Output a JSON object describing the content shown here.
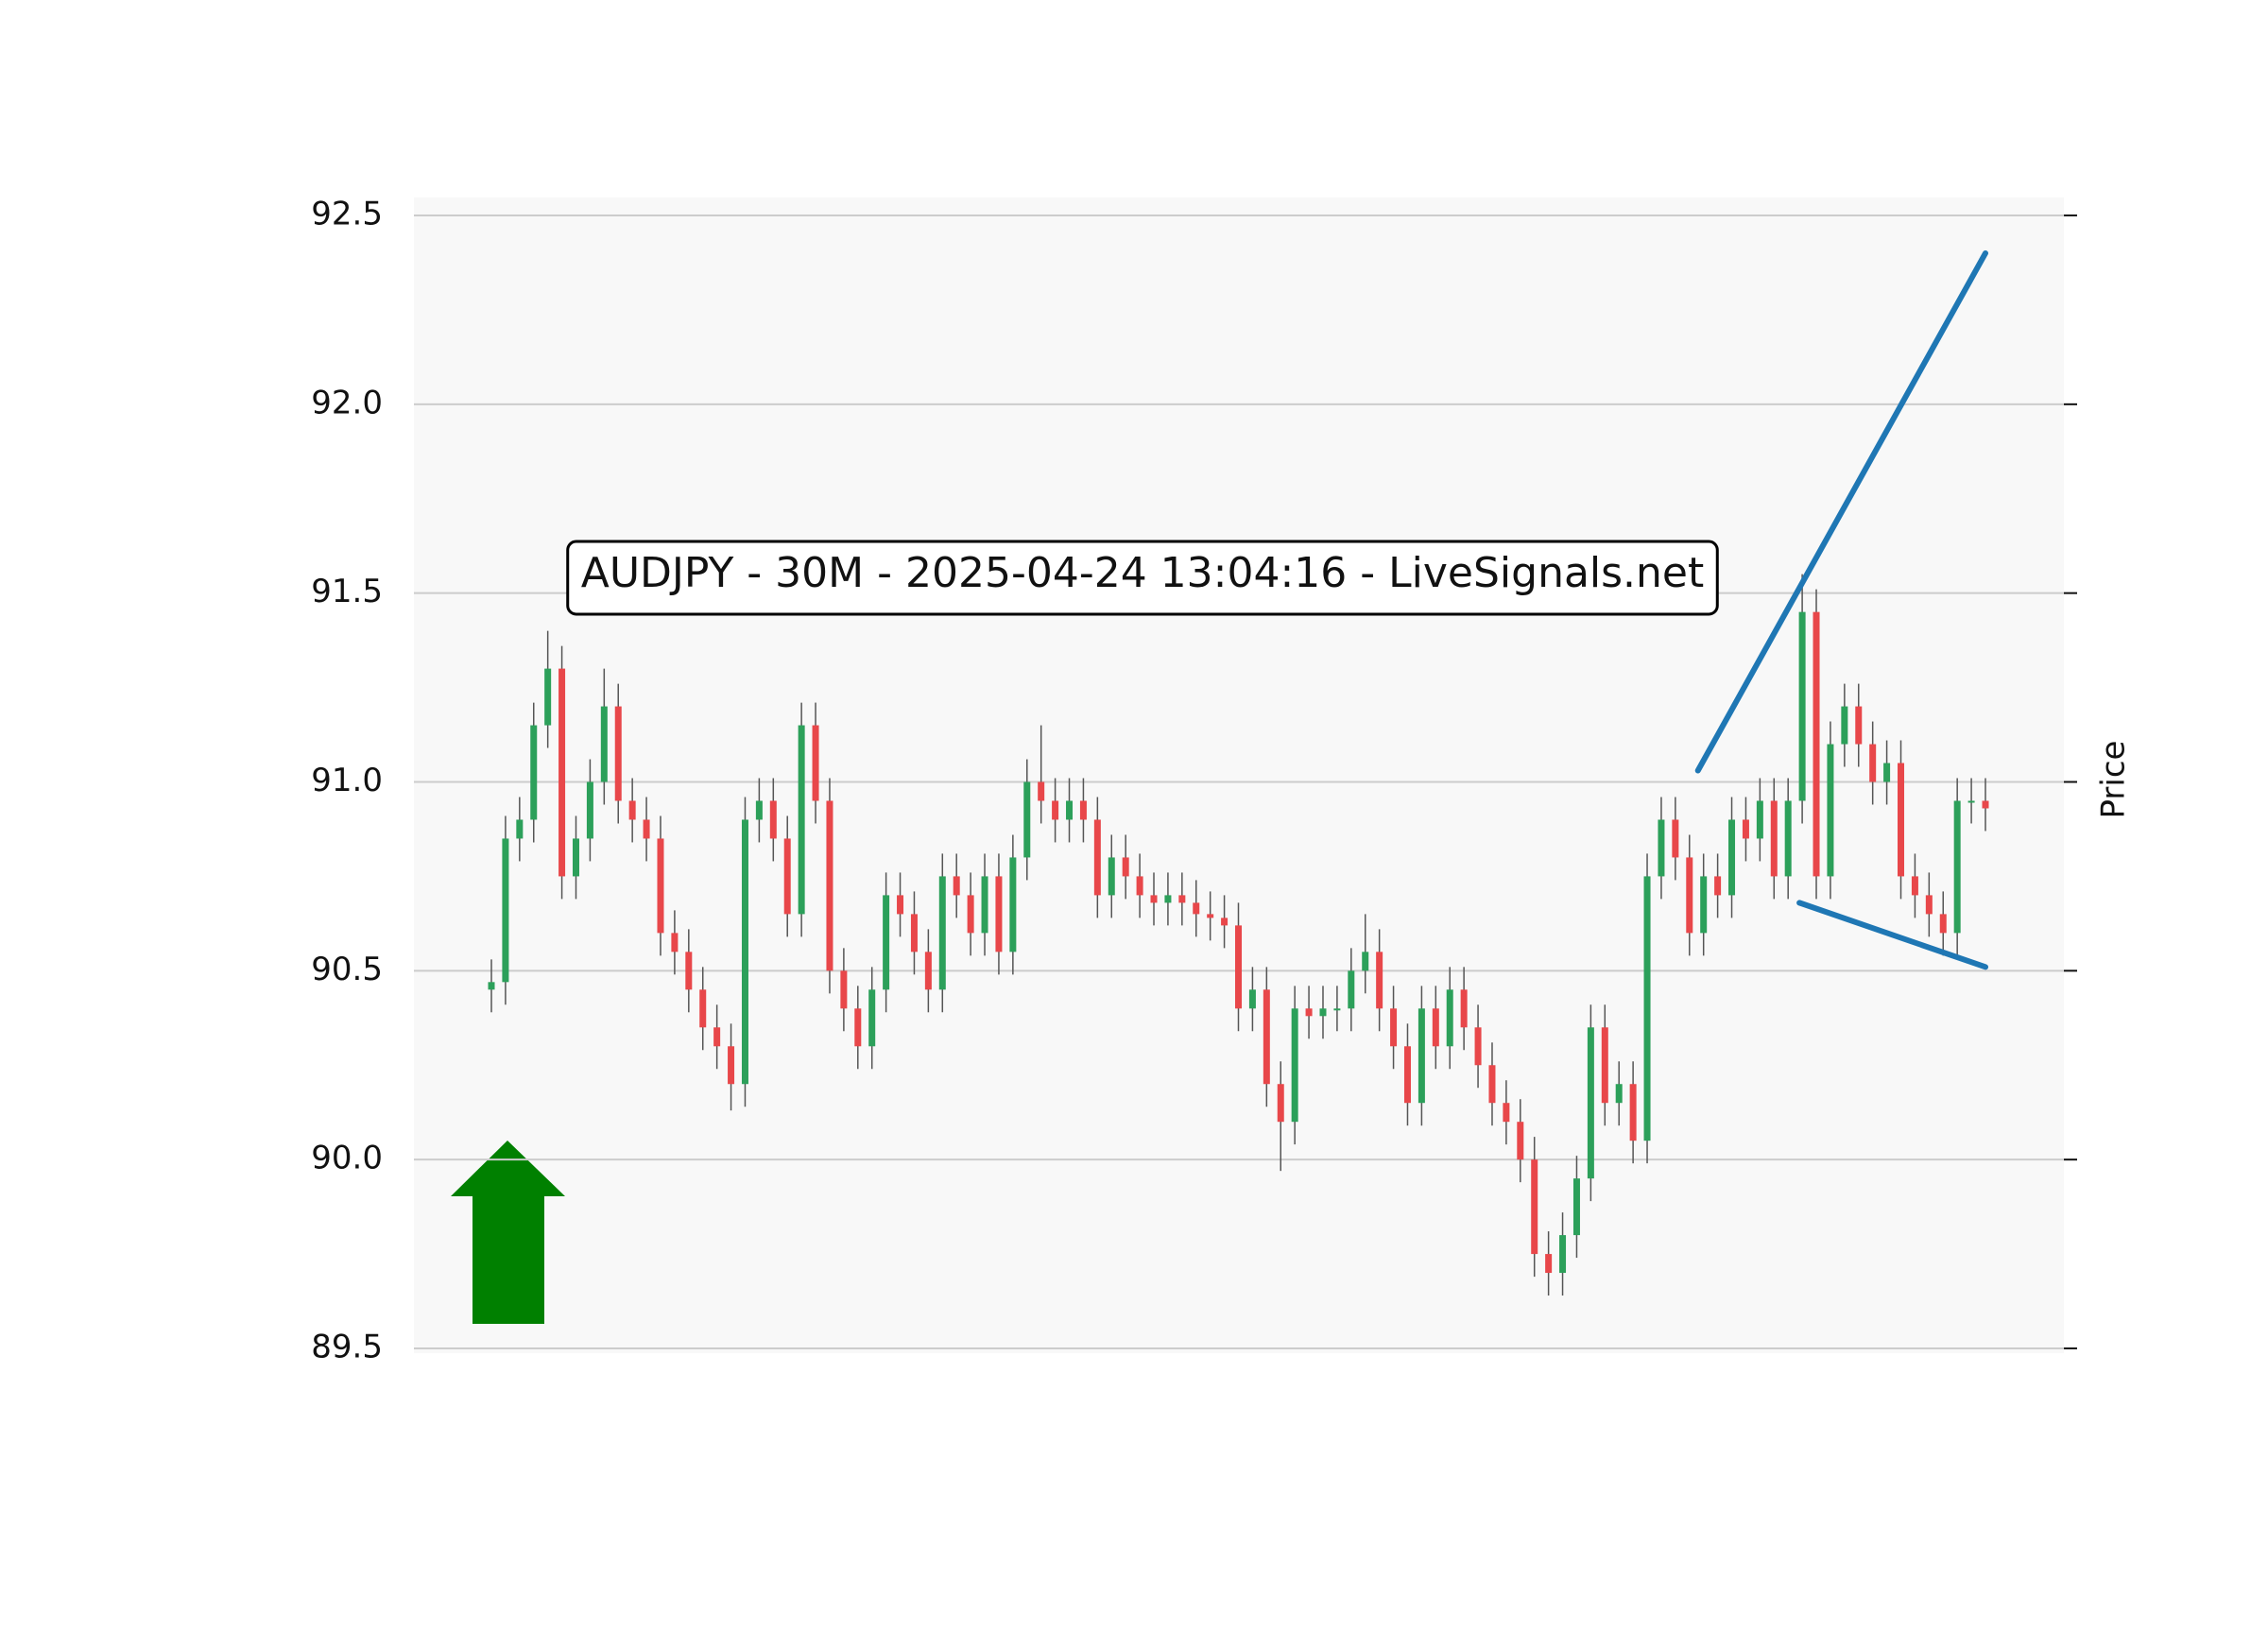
{
  "chart_data": {
    "type": "candlestick",
    "annotation": "AUDJPY - 30M - 2025-04-24 13:04:16 - LiveSignals.net",
    "ylabel": "Price",
    "ylim": [
      89.5,
      92.5
    ],
    "yticks": [
      {
        "value": 89.5,
        "label": "89.5"
      },
      {
        "value": 90,
        "label": "90.0"
      },
      90.5,
      {
        "value": 91,
        "label": "91.0"
      },
      91.5,
      {
        "value": 92,
        "label": "92.0"
      },
      92.5
    ],
    "grid": true,
    "up_color": "#2ca05a",
    "down_color": "#e8474a",
    "wick_color": "#555555",
    "open": [
      90.45,
      90.47,
      90.85,
      90.9,
      91.15,
      91.3,
      90.75,
      90.85,
      91.0,
      91.2,
      90.95,
      90.9,
      90.85,
      90.6,
      90.55,
      90.45,
      90.35,
      90.3,
      90.2,
      90.9,
      90.95,
      90.85,
      90.65,
      91.15,
      90.95,
      90.5,
      90.4,
      90.3,
      90.45,
      90.7,
      90.65,
      90.55,
      90.45,
      90.75,
      90.7,
      90.6,
      90.75,
      90.55,
      90.8,
      91.0,
      90.95,
      90.9,
      90.95,
      90.9,
      90.7,
      90.8,
      90.75,
      90.7,
      90.68,
      90.7,
      90.68,
      90.65,
      90.64,
      90.62,
      90.4,
      90.45,
      90.2,
      90.1,
      90.4,
      90.38,
      90.4,
      90.4,
      90.5,
      90.55,
      90.4,
      90.3,
      90.15,
      90.4,
      90.3,
      90.45,
      90.35,
      90.25,
      90.15,
      90.1,
      90.0,
      89.75,
      89.7,
      89.8,
      89.95,
      90.35,
      90.15,
      90.2,
      90.05,
      90.75,
      90.9,
      90.8,
      90.6,
      90.75,
      90.7,
      90.9,
      90.85,
      90.95,
      90.75,
      90.95,
      91.45,
      90.75,
      91.1,
      91.2,
      91.1,
      91.0,
      91.05,
      90.75,
      90.7,
      90.65,
      90.6,
      90.95,
      90.95
    ],
    "high": [
      90.53,
      90.91,
      90.96,
      91.21,
      91.4,
      91.36,
      90.91,
      91.06,
      91.3,
      91.26,
      91.01,
      90.96,
      90.91,
      90.66,
      90.61,
      90.51,
      90.41,
      90.36,
      90.96,
      91.01,
      91.01,
      90.91,
      91.21,
      91.21,
      91.01,
      90.56,
      90.46,
      90.51,
      90.76,
      90.76,
      90.71,
      90.61,
      90.81,
      90.81,
      90.76,
      90.81,
      90.81,
      90.86,
      91.06,
      91.15,
      91.01,
      91.01,
      91.01,
      90.96,
      90.86,
      90.86,
      90.81,
      90.76,
      90.76,
      90.76,
      90.74,
      90.71,
      90.7,
      90.68,
      90.51,
      90.51,
      90.26,
      90.46,
      90.46,
      90.46,
      90.46,
      90.56,
      90.65,
      90.61,
      90.46,
      90.36,
      90.46,
      90.46,
      90.51,
      90.51,
      90.41,
      90.31,
      90.21,
      90.16,
      90.06,
      89.81,
      89.86,
      90.01,
      90.41,
      90.41,
      90.26,
      90.26,
      90.81,
      90.96,
      90.96,
      90.86,
      90.81,
      90.81,
      90.96,
      90.96,
      91.01,
      91.01,
      91.01,
      91.55,
      91.51,
      91.16,
      91.26,
      91.26,
      91.16,
      91.11,
      91.11,
      90.81,
      90.76,
      90.71,
      91.01,
      91.01,
      91.01
    ],
    "low": [
      90.39,
      90.41,
      90.79,
      90.84,
      91.09,
      90.69,
      90.69,
      90.79,
      90.94,
      90.89,
      90.84,
      90.79,
      90.54,
      90.49,
      90.39,
      90.29,
      90.24,
      90.13,
      90.14,
      90.84,
      90.79,
      90.59,
      90.59,
      90.89,
      90.44,
      90.34,
      90.24,
      90.24,
      90.39,
      90.59,
      90.49,
      90.39,
      90.39,
      90.64,
      90.54,
      90.54,
      90.49,
      90.49,
      90.74,
      90.89,
      90.84,
      90.84,
      90.84,
      90.64,
      90.64,
      90.69,
      90.64,
      90.62,
      90.62,
      90.62,
      90.59,
      90.58,
      90.56,
      90.34,
      90.34,
      90.14,
      89.97,
      90.04,
      90.32,
      90.32,
      90.34,
      90.34,
      90.44,
      90.34,
      90.24,
      90.09,
      90.09,
      90.24,
      90.24,
      90.29,
      90.19,
      90.09,
      90.04,
      89.94,
      89.69,
      89.64,
      89.64,
      89.74,
      89.89,
      90.09,
      90.09,
      89.99,
      89.99,
      90.69,
      90.74,
      90.54,
      90.54,
      90.64,
      90.64,
      90.79,
      90.79,
      90.69,
      90.69,
      90.89,
      90.69,
      90.69,
      91.04,
      91.04,
      90.94,
      90.94,
      90.69,
      90.64,
      90.59,
      90.54,
      90.54,
      90.89,
      90.87
    ],
    "close": [
      90.47,
      90.85,
      90.9,
      91.15,
      91.3,
      90.75,
      90.85,
      91.0,
      91.2,
      90.95,
      90.9,
      90.85,
      90.6,
      90.55,
      90.45,
      90.35,
      90.3,
      90.2,
      90.9,
      90.95,
      90.85,
      90.65,
      91.15,
      90.95,
      90.5,
      90.4,
      90.3,
      90.45,
      90.7,
      90.65,
      90.55,
      90.45,
      90.75,
      90.7,
      90.6,
      90.75,
      90.55,
      90.8,
      91.0,
      90.95,
      90.9,
      90.95,
      90.9,
      90.7,
      90.8,
      90.75,
      90.7,
      90.68,
      90.7,
      90.68,
      90.65,
      90.64,
      90.62,
      90.4,
      90.45,
      90.2,
      90.1,
      90.4,
      90.38,
      90.4,
      90.4,
      90.5,
      90.55,
      90.4,
      90.3,
      90.15,
      90.4,
      90.3,
      90.45,
      90.35,
      90.25,
      90.15,
      90.1,
      90.0,
      89.75,
      89.7,
      89.8,
      89.95,
      90.35,
      90.15,
      90.2,
      90.05,
      90.75,
      90.9,
      90.8,
      90.6,
      90.75,
      90.7,
      90.9,
      90.85,
      90.95,
      90.75,
      90.95,
      91.45,
      90.75,
      91.1,
      91.2,
      91.1,
      91.0,
      91.05,
      90.75,
      90.7,
      90.65,
      90.6,
      90.95,
      90.95,
      90.93
    ],
    "trendlines": [
      {
        "color": "#1f77b4",
        "x": [
          85.6,
          106
        ],
        "y": [
          91.03,
          92.4
        ]
      },
      {
        "color": "#1f77b4",
        "x": [
          92.8,
          106
        ],
        "y": [
          90.68,
          90.51
        ]
      }
    ]
  }
}
